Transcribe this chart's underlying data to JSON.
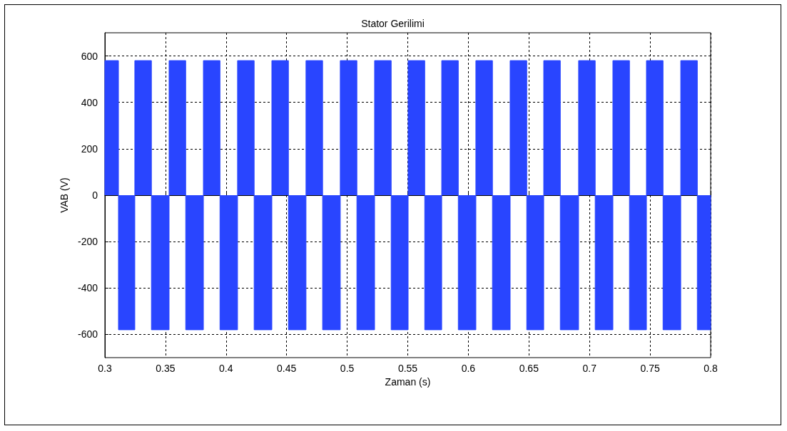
{
  "chart_data": {
    "type": "area",
    "title": "Stator Gerilimi",
    "xlabel": "Zaman (s)",
    "ylabel": "VAB (V)",
    "xlim": [
      0.3,
      0.8
    ],
    "xticks": [
      0.3,
      0.35,
      0.4,
      0.45,
      0.5,
      0.55,
      0.6,
      0.65,
      0.7,
      0.75,
      0.8
    ],
    "ylim": [
      -700,
      700
    ],
    "yticks": [
      -600,
      -400,
      -200,
      0,
      200,
      400,
      600
    ],
    "grid": true,
    "series": [
      {
        "color": "#2945ff",
        "x": [
          0.3,
          0.3,
          0.3112,
          0.3112,
          0.3112,
          0.3112,
          0.3247,
          0.3247,
          0.3247,
          0.3247,
          0.3384,
          0.3384,
          0.3384,
          0.3384,
          0.353,
          0.353,
          0.353,
          0.353,
          0.3667,
          0.3667,
          0.3667,
          0.3667,
          0.3813,
          0.3813,
          0.3813,
          0.3813,
          0.395,
          0.395,
          0.395,
          0.395,
          0.4095,
          0.4095,
          0.4095,
          0.4095,
          0.4232,
          0.4232,
          0.4232,
          0.4232,
          0.4378,
          0.4378,
          0.4378,
          0.4378,
          0.4515,
          0.4515,
          0.4515,
          0.4515,
          0.466,
          0.466,
          0.466,
          0.466,
          0.4797,
          0.4797,
          0.4797,
          0.4797,
          0.4943,
          0.4943,
          0.4943,
          0.4943,
          0.508,
          0.508,
          0.508,
          0.508,
          0.5226,
          0.5226,
          0.5226,
          0.5226,
          0.5363,
          0.5363,
          0.5363,
          0.5363,
          0.5503,
          0.5503,
          0.5503,
          0.5503,
          0.564,
          0.564,
          0.564,
          0.564,
          0.578,
          0.578,
          0.578,
          0.578,
          0.5917,
          0.5917,
          0.5917,
          0.5917,
          0.6062,
          0.6062,
          0.6062,
          0.6062,
          0.6199,
          0.6199,
          0.6199,
          0.6199,
          0.6345,
          0.6345,
          0.6345,
          0.6345,
          0.6482,
          0.6482,
          0.6482,
          0.6482,
          0.6622,
          0.6622,
          0.6622,
          0.6622,
          0.6759,
          0.6759,
          0.6759,
          0.6759,
          0.691,
          0.691,
          0.691,
          0.691,
          0.7047,
          0.7047,
          0.7047,
          0.7047,
          0.7193,
          0.7193,
          0.7193,
          0.7193,
          0.733,
          0.733,
          0.733,
          0.733,
          0.747,
          0.747,
          0.747,
          0.747,
          0.7607,
          0.7607,
          0.7607,
          0.7607,
          0.7753,
          0.7753,
          0.7753,
          0.7753,
          0.789,
          0.789,
          0.789,
          0.789,
          0.8,
          0.8
        ],
        "values": [
          0,
          580,
          580,
          0,
          0,
          -580,
          -580,
          0,
          0,
          580,
          580,
          0,
          0,
          -580,
          -580,
          0,
          0,
          580,
          580,
          0,
          0,
          -580,
          -580,
          0,
          0,
          580,
          580,
          0,
          0,
          -580,
          -580,
          0,
          0,
          580,
          580,
          0,
          0,
          -580,
          -580,
          0,
          0,
          580,
          580,
          0,
          0,
          -580,
          -580,
          0,
          0,
          580,
          580,
          0,
          0,
          -580,
          -580,
          0,
          0,
          580,
          580,
          0,
          0,
          -580,
          -580,
          0,
          0,
          580,
          580,
          0,
          0,
          -580,
          -580,
          0,
          0,
          580,
          580,
          0,
          0,
          -580,
          -580,
          0,
          0,
          580,
          580,
          0,
          0,
          -580,
          -580,
          0,
          0,
          580,
          580,
          0,
          0,
          -580,
          -580,
          0,
          0,
          580,
          580,
          0,
          0,
          -580,
          -580,
          0,
          0,
          580,
          580,
          0,
          0,
          -580,
          -580,
          0,
          0,
          580,
          580,
          0,
          0,
          -580,
          -580,
          0,
          0,
          580,
          580,
          0,
          0,
          -580,
          -580,
          0,
          0,
          580,
          580,
          0,
          0,
          -580,
          -580,
          0,
          0,
          580,
          580,
          0,
          0,
          -580,
          -580,
          0
        ]
      }
    ]
  }
}
